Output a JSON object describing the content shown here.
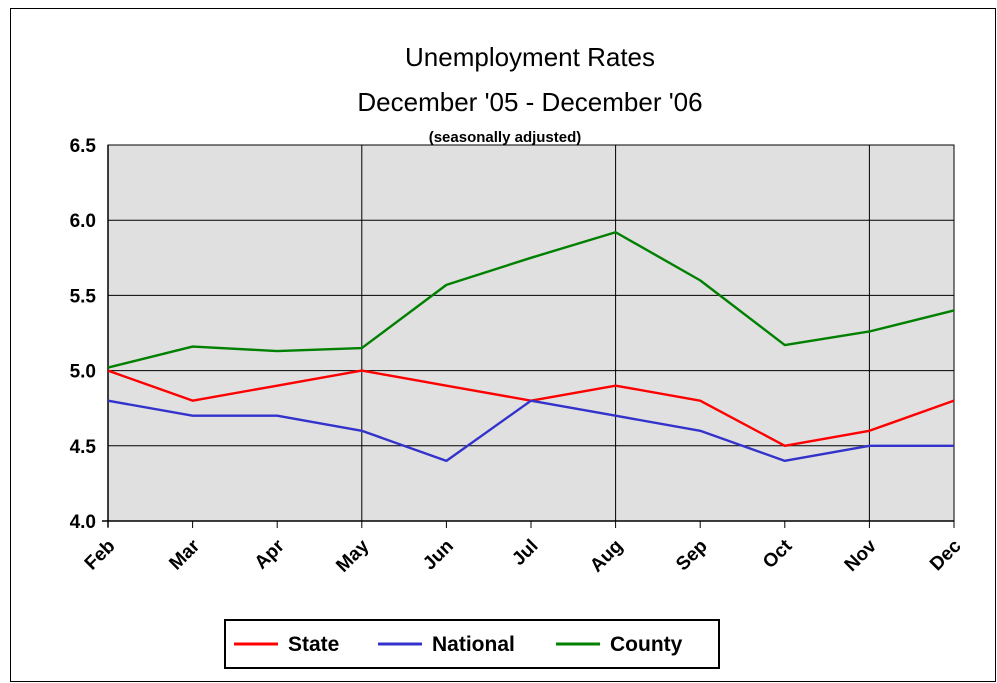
{
  "chart_data": {
    "type": "line",
    "title": "Unemployment Rates",
    "subtitle": "December '05 - December '06",
    "note": "(seasonally adjusted)",
    "categories": [
      "Feb",
      "Mar",
      "Apr",
      "May",
      "Jun",
      "Jul",
      "Aug",
      "Sep",
      "Oct",
      "Nov",
      "Dec"
    ],
    "series": [
      {
        "name": "State",
        "color": "#ff0000",
        "values": [
          5.0,
          4.8,
          4.9,
          5.0,
          4.9,
          4.8,
          4.9,
          4.8,
          4.5,
          4.6,
          4.8
        ]
      },
      {
        "name": "National",
        "color": "#3333cc",
        "values": [
          4.8,
          4.7,
          4.7,
          4.6,
          4.4,
          4.8,
          4.7,
          4.6,
          4.4,
          4.5,
          4.5
        ]
      },
      {
        "name": "County",
        "color": "#008000",
        "values": [
          5.02,
          5.16,
          5.13,
          5.15,
          5.57,
          5.75,
          5.92,
          5.6,
          5.17,
          5.26,
          5.4
        ]
      }
    ],
    "ylim": [
      4.0,
      6.5
    ],
    "yticks": [
      "4.0",
      "4.5",
      "5.0",
      "5.5",
      "6.0",
      "6.5"
    ],
    "xlabel": "",
    "ylabel": "",
    "grid": true,
    "plot_background": "#e0e0e0",
    "legend_position": "bottom"
  }
}
